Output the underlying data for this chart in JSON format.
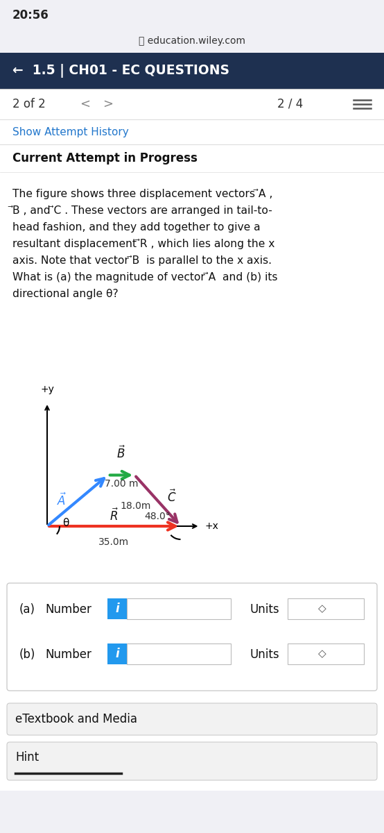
{
  "bg_color": "#f0f0f5",
  "white": "#ffffff",
  "dark_navy": "#1e3050",
  "blue_link": "#2277cc",
  "status_bar_text": "20:56",
  "url_text": "education.wiley.com",
  "nav_title": "←  1.5 | CH01 - EC QUESTIONS",
  "pagination_left": "2 of 2",
  "pagination_right": "2 / 4",
  "show_attempt": "Show Attempt History",
  "current_attempt": "Current Attempt in Progress",
  "vec_A_color": "#3388ff",
  "vec_B_color": "#22aa44",
  "vec_C_color": "#993366",
  "vec_R_color": "#ee3322",
  "label_B": "7.00 m",
  "label_C": "18.0m",
  "label_R": "35.0m",
  "angle_label": "48.0°",
  "theta_label": "θ",
  "box_a_label": "(a)",
  "box_b_label": "(b)",
  "number_label": "Number",
  "units_label": "Units",
  "info_color": "#2299ee",
  "etextbook": "eTextbook and Media",
  "hint": "Hint",
  "etextbook_bg": "#f2f2f2",
  "hint_bg": "#f2f2f2"
}
